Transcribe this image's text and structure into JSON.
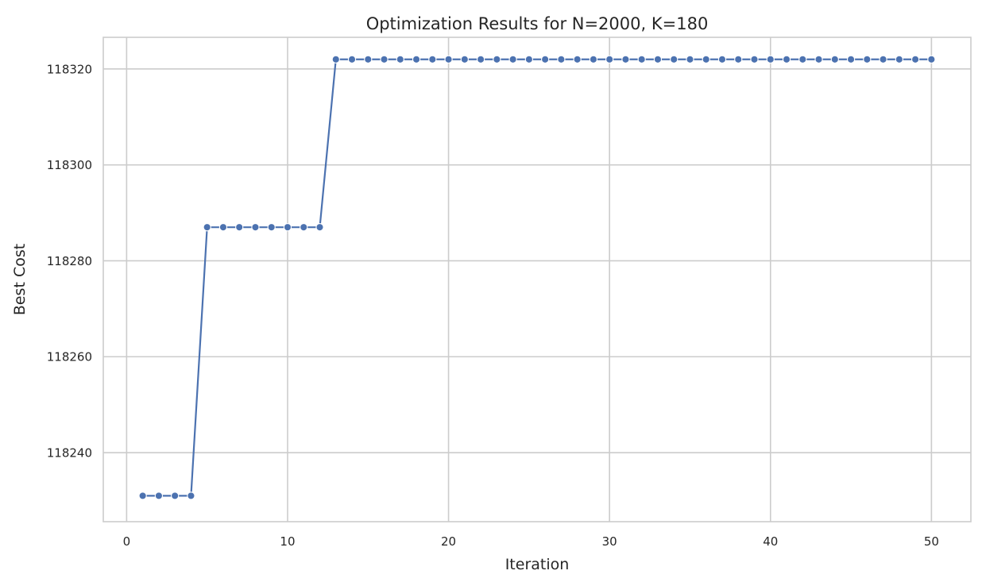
{
  "chart_data": {
    "type": "line",
    "title": "Optimization Results for N=2000, K=180",
    "xlabel": "Iteration",
    "ylabel": "Best Cost",
    "xlim": [
      -1.45,
      52.45
    ],
    "ylim": [
      118225.6,
      118326.6
    ],
    "xticks": [
      0,
      10,
      20,
      30,
      40,
      50
    ],
    "yticks": [
      118240,
      118260,
      118280,
      118300,
      118320
    ],
    "grid": true,
    "legend": "none",
    "colors": {
      "line": "#4c72b0",
      "grid": "#cccccc",
      "frame": "#cccccc"
    },
    "series": [
      {
        "marker": "circle",
        "x": [
          1,
          2,
          3,
          4,
          5,
          6,
          7,
          8,
          9,
          10,
          11,
          12,
          13,
          14,
          15,
          16,
          17,
          18,
          19,
          20,
          21,
          22,
          23,
          24,
          25,
          26,
          27,
          28,
          29,
          30,
          31,
          32,
          33,
          34,
          35,
          36,
          37,
          38,
          39,
          40,
          41,
          42,
          43,
          44,
          45,
          46,
          47,
          48,
          49,
          50
        ],
        "y": [
          118231,
          118231,
          118231,
          118231,
          118287,
          118287,
          118287,
          118287,
          118287,
          118287,
          118287,
          118287,
          118322,
          118322,
          118322,
          118322,
          118322,
          118322,
          118322,
          118322,
          118322,
          118322,
          118322,
          118322,
          118322,
          118322,
          118322,
          118322,
          118322,
          118322,
          118322,
          118322,
          118322,
          118322,
          118322,
          118322,
          118322,
          118322,
          118322,
          118322,
          118322,
          118322,
          118322,
          118322,
          118322,
          118322,
          118322,
          118322,
          118322,
          118322
        ]
      }
    ]
  }
}
